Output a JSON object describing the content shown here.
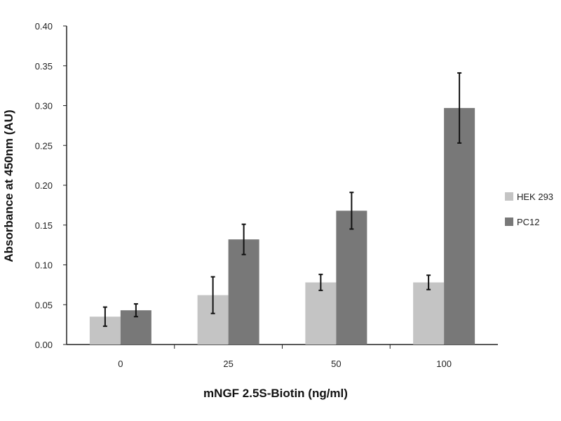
{
  "chart_data": {
    "type": "bar",
    "title": "",
    "xlabel": "mNGF 2.5S-Biotin (ng/ml)",
    "ylabel": "Absorbance at 450nm (AU)",
    "categories": [
      "0",
      "25",
      "50",
      "100"
    ],
    "ylim": [
      0,
      0.4
    ],
    "yticks": [
      "0.00",
      "0.05",
      "0.10",
      "0.15",
      "0.20",
      "0.25",
      "0.30",
      "0.35",
      "0.40"
    ],
    "grid": false,
    "legend_position": "right",
    "series": [
      {
        "name": "HEK 293",
        "color": "#c4c4c4",
        "values": [
          0.035,
          0.062,
          0.078,
          0.078
        ],
        "errors": [
          0.012,
          0.023,
          0.01,
          0.009
        ]
      },
      {
        "name": "PC12",
        "color": "#787878",
        "values": [
          0.043,
          0.132,
          0.168,
          0.297
        ],
        "errors": [
          0.008,
          0.019,
          0.023,
          0.044
        ]
      }
    ]
  }
}
